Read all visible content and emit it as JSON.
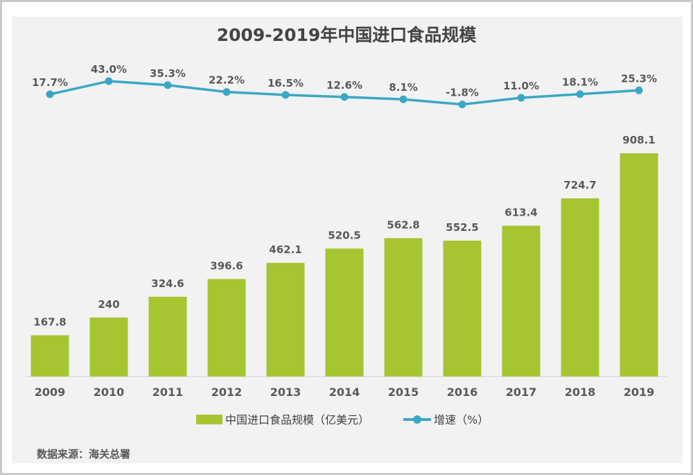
{
  "chart_data": {
    "type": "bar",
    "title": "2009-2019年中国进口食品规模",
    "categories": [
      "2009",
      "2010",
      "2011",
      "2012",
      "2013",
      "2014",
      "2015",
      "2016",
      "2017",
      "2018",
      "2019"
    ],
    "series": [
      {
        "name": "中国进口食品规模（亿美元）",
        "type": "bar",
        "color": "#a6c531",
        "values": [
          167.8,
          240,
          324.6,
          396.6,
          462.1,
          520.5,
          562.8,
          552.5,
          613.4,
          724.7,
          908.1
        ],
        "labels": [
          "167.8",
          "240",
          "324.6",
          "396.6",
          "462.1",
          "520.5",
          "562.8",
          "552.5",
          "613.4",
          "724.7",
          "908.1"
        ]
      },
      {
        "name": "增速（%）",
        "type": "line",
        "color": "#3aa8c4",
        "values": [
          17.7,
          43.0,
          35.3,
          22.2,
          16.5,
          12.6,
          8.1,
          -1.8,
          11.0,
          18.1,
          25.3
        ],
        "labels": [
          "17.7%",
          "43.0%",
          "35.3%",
          "22.2%",
          "16.5%",
          "12.6%",
          "8.1%",
          "-1.8%",
          "11.0%",
          "18.1%",
          "25.3%"
        ]
      }
    ],
    "legend_position": "bottom",
    "grid": false,
    "source": "数据来源：海关总署"
  }
}
